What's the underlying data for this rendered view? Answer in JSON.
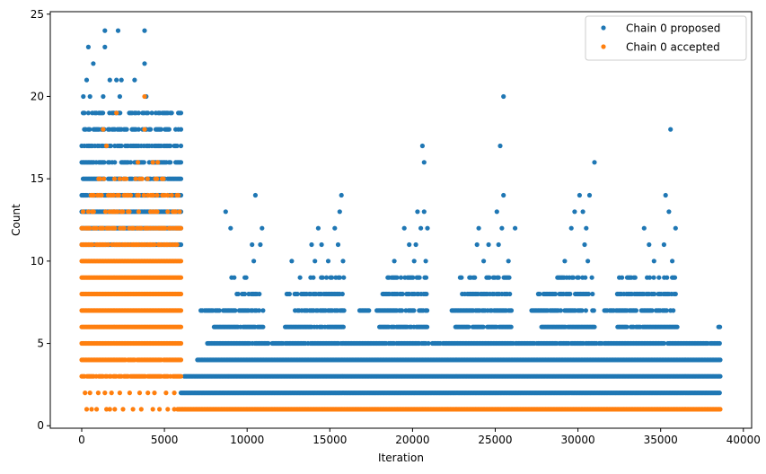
{
  "chart_data": {
    "type": "scatter",
    "xlabel": "Iteration",
    "ylabel": "Count",
    "xlim": [
      -1900,
      40500
    ],
    "ylim": [
      -0.15,
      25.15
    ],
    "xticks": [
      0,
      5000,
      10000,
      15000,
      20000,
      25000,
      30000,
      35000,
      40000
    ],
    "xtick_labels": [
      "0",
      "5000",
      "10000",
      "15000",
      "20000",
      "25000",
      "30000",
      "35000",
      "40000"
    ],
    "yticks": [
      0,
      5,
      10,
      15,
      20,
      25
    ],
    "ytick_labels": [
      "0",
      "5",
      "10",
      "15",
      "20",
      "25"
    ],
    "grid": false,
    "legend_position": "top-right",
    "series": [
      {
        "name": "Chain 0 proposed",
        "color": "#1f77b4",
        "marker": "circle",
        "points": [
          [
            400,
            23
          ],
          [
            1400,
            23
          ],
          [
            2200,
            24
          ],
          [
            1400,
            24
          ],
          [
            3800,
            24
          ],
          [
            700,
            22
          ],
          [
            3800,
            22
          ],
          [
            300,
            21
          ],
          [
            1700,
            21
          ],
          [
            2400,
            21
          ],
          [
            3200,
            21
          ],
          [
            2100,
            21
          ],
          [
            100,
            20
          ],
          [
            500,
            20
          ],
          [
            1300,
            20
          ],
          [
            2300,
            20
          ],
          [
            3900,
            20
          ],
          [
            25500,
            20
          ],
          [
            20600,
            17
          ],
          [
            20700,
            16
          ],
          [
            25300,
            17
          ],
          [
            35600,
            18
          ],
          [
            31000,
            16
          ],
          [
            10500,
            14
          ],
          [
            15700,
            14
          ],
          [
            25500,
            14
          ],
          [
            30100,
            14
          ],
          [
            30700,
            14
          ],
          [
            35300,
            14
          ],
          [
            15600,
            13
          ],
          [
            20300,
            13
          ],
          [
            20700,
            13
          ],
          [
            25100,
            13
          ],
          [
            29800,
            13
          ],
          [
            30300,
            13
          ],
          [
            35500,
            13
          ],
          [
            8700,
            13
          ],
          [
            9000,
            12
          ],
          [
            10900,
            12
          ],
          [
            14300,
            12
          ],
          [
            15300,
            12
          ],
          [
            19500,
            12
          ],
          [
            20500,
            12
          ],
          [
            20900,
            12
          ],
          [
            24000,
            12
          ],
          [
            25400,
            12
          ],
          [
            26200,
            12
          ],
          [
            29600,
            12
          ],
          [
            30500,
            12
          ],
          [
            34000,
            12
          ],
          [
            35900,
            12
          ],
          [
            10300,
            11
          ],
          [
            10800,
            11
          ],
          [
            13900,
            11
          ],
          [
            14500,
            11
          ],
          [
            15500,
            11
          ],
          [
            19800,
            11
          ],
          [
            20200,
            11
          ],
          [
            23900,
            11
          ],
          [
            24600,
            11
          ],
          [
            25200,
            11
          ],
          [
            30400,
            11
          ],
          [
            34300,
            11
          ],
          [
            35200,
            11
          ],
          [
            10400,
            10
          ],
          [
            12700,
            10
          ],
          [
            14100,
            10
          ],
          [
            14900,
            10
          ],
          [
            15800,
            10
          ],
          [
            18900,
            10
          ],
          [
            20100,
            10
          ],
          [
            20800,
            10
          ],
          [
            24300,
            10
          ],
          [
            25800,
            10
          ],
          [
            29200,
            10
          ],
          [
            30600,
            10
          ],
          [
            34600,
            10
          ],
          [
            35700,
            10
          ]
        ],
        "bands": [
          {
            "y": 19,
            "x": [
              0,
              6000
            ],
            "density": 0.55
          },
          {
            "y": 18,
            "x": [
              0,
              6000
            ],
            "density": 0.6
          },
          {
            "y": 17,
            "x": [
              0,
              6000
            ],
            "density": 0.65
          },
          {
            "y": 16,
            "x": [
              0,
              6000
            ],
            "density": 0.75
          },
          {
            "y": 15,
            "x": [
              0,
              6000
            ],
            "density": 0.8
          },
          {
            "y": 14,
            "x": [
              0,
              6000
            ],
            "density": 0.9
          },
          {
            "y": 13,
            "x": [
              0,
              6000
            ],
            "density": 1.0
          },
          {
            "y": 12,
            "x": [
              0,
              6000
            ],
            "density": 1.0
          },
          {
            "y": 11,
            "x": [
              0,
              6000
            ],
            "density": 1.0
          },
          {
            "y": 9,
            "x": [
              8500,
              10000
            ],
            "density": 0.3
          },
          {
            "y": 9,
            "x": [
              13200,
              15900
            ],
            "density": 0.45
          },
          {
            "y": 9,
            "x": [
              18500,
              20900
            ],
            "density": 0.5
          },
          {
            "y": 9,
            "x": [
              22800,
              25900
            ],
            "density": 0.5
          },
          {
            "y": 9,
            "x": [
              28600,
              31000
            ],
            "density": 0.5
          },
          {
            "y": 9,
            "x": [
              32500,
              36000
            ],
            "density": 0.45
          },
          {
            "y": 8,
            "x": [
              9300,
              10800
            ],
            "density": 0.6
          },
          {
            "y": 8,
            "x": [
              12400,
              15900
            ],
            "density": 0.7
          },
          {
            "y": 8,
            "x": [
              18200,
              20900
            ],
            "density": 0.8
          },
          {
            "y": 8,
            "x": [
              23000,
              25900
            ],
            "density": 0.8
          },
          {
            "y": 8,
            "x": [
              27600,
              31000
            ],
            "density": 0.7
          },
          {
            "y": 8,
            "x": [
              32300,
              35900
            ],
            "density": 0.7
          },
          {
            "y": 7,
            "x": [
              7200,
              11000
            ],
            "density": 0.7
          },
          {
            "y": 7,
            "x": [
              12900,
              15900
            ],
            "density": 0.8
          },
          {
            "y": 7,
            "x": [
              16800,
              20900
            ],
            "density": 0.8
          },
          {
            "y": 7,
            "x": [
              22300,
              26000
            ],
            "density": 0.8
          },
          {
            "y": 7,
            "x": [
              27200,
              31000
            ],
            "density": 0.8
          },
          {
            "y": 7,
            "x": [
              31600,
              35900
            ],
            "density": 0.8
          },
          {
            "y": 6,
            "x": [
              8000,
              11000
            ],
            "density": 0.9
          },
          {
            "y": 6,
            "x": [
              12300,
              15900
            ],
            "density": 0.9
          },
          {
            "y": 6,
            "x": [
              18000,
              20900
            ],
            "density": 0.9
          },
          {
            "y": 6,
            "x": [
              22600,
              26000
            ],
            "density": 0.9
          },
          {
            "y": 6,
            "x": [
              27800,
              31000
            ],
            "density": 0.9
          },
          {
            "y": 6,
            "x": [
              32400,
              36000
            ],
            "density": 0.9
          },
          {
            "y": 6,
            "x": [
              38500,
              38600
            ],
            "density": 1.0
          },
          {
            "y": 5,
            "x": [
              7600,
              38600
            ],
            "density": 0.9
          },
          {
            "y": 4,
            "x": [
              7000,
              38600
            ],
            "density": 1.0
          },
          {
            "y": 3,
            "x": [
              6200,
              38600
            ],
            "density": 1.0
          },
          {
            "y": 2,
            "x": [
              6000,
              38600
            ],
            "density": 1.0
          }
        ]
      },
      {
        "name": "Chain 0 accepted",
        "color": "#ff7f0e",
        "marker": "circle",
        "points": [
          [
            3800,
            20
          ],
          [
            2100,
            19
          ],
          [
            1300,
            18
          ],
          [
            3800,
            18
          ],
          [
            1500,
            17
          ],
          [
            3400,
            16
          ],
          [
            4300,
            16
          ],
          [
            4600,
            16
          ],
          [
            300,
            1
          ],
          [
            600,
            1
          ],
          [
            900,
            1
          ],
          [
            1500,
            1
          ],
          [
            1700,
            1
          ],
          [
            2000,
            1
          ],
          [
            2500,
            1
          ],
          [
            3100,
            1
          ],
          [
            3600,
            1
          ],
          [
            4300,
            1
          ],
          [
            4700,
            1
          ],
          [
            5200,
            1
          ],
          [
            5600,
            1
          ],
          [
            200,
            2
          ],
          [
            500,
            2
          ],
          [
            1000,
            2
          ],
          [
            1400,
            2
          ],
          [
            1800,
            2
          ],
          [
            2300,
            2
          ],
          [
            2900,
            2
          ],
          [
            3500,
            2
          ],
          [
            4000,
            2
          ],
          [
            4400,
            2
          ],
          [
            5100,
            2
          ],
          [
            5600,
            2
          ]
        ],
        "bands": [
          {
            "y": 15,
            "x": [
              300,
              5000
            ],
            "density": 0.15
          },
          {
            "y": 14,
            "x": [
              0,
              6000
            ],
            "density": 0.45
          },
          {
            "y": 13,
            "x": [
              0,
              6000
            ],
            "density": 0.25
          },
          {
            "y": 12,
            "x": [
              0,
              6000
            ],
            "density": 0.55
          },
          {
            "y": 11,
            "x": [
              0,
              6000
            ],
            "density": 0.65
          },
          {
            "y": 10,
            "x": [
              0,
              6000
            ],
            "density": 1.0
          },
          {
            "y": 9,
            "x": [
              0,
              6000
            ],
            "density": 1.0
          },
          {
            "y": 8,
            "x": [
              0,
              6000
            ],
            "density": 1.0
          },
          {
            "y": 7,
            "x": [
              0,
              6000
            ],
            "density": 1.0
          },
          {
            "y": 6,
            "x": [
              0,
              6000
            ],
            "density": 1.0
          },
          {
            "y": 5,
            "x": [
              0,
              6000
            ],
            "density": 1.0
          },
          {
            "y": 4,
            "x": [
              0,
              6000
            ],
            "density": 0.95
          },
          {
            "y": 3,
            "x": [
              0,
              6000
            ],
            "density": 0.85
          },
          {
            "y": 1,
            "x": [
              5800,
              38600
            ],
            "density": 1.0
          }
        ]
      }
    ]
  }
}
